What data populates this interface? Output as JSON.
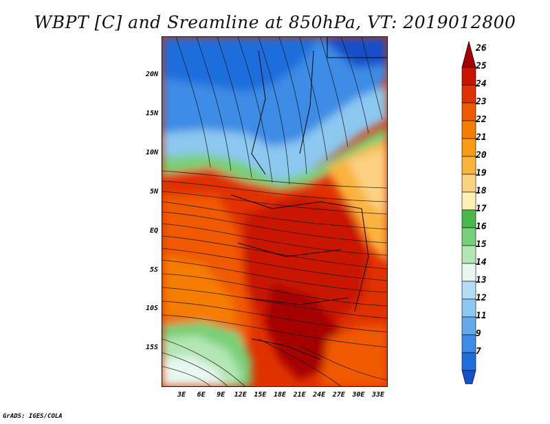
{
  "title": "WBPT [C] and Sreamline at 850hPa, VT: 2019012800",
  "credit": "GrADS: IGES/COLA",
  "y_ticks": [
    "20N",
    "15N",
    "10N",
    "5N",
    "EQ",
    "5S",
    "10S",
    "15S"
  ],
  "x_ticks": [
    "3E",
    "6E",
    "9E",
    "12E",
    "15E",
    "18E",
    "21E",
    "24E",
    "27E",
    "30E",
    "33E"
  ],
  "colorbar": {
    "labels": [
      "26",
      "25",
      "24",
      "23",
      "22",
      "21",
      "20",
      "19",
      "18",
      "17",
      "16",
      "15",
      "14",
      "13",
      "12",
      "11",
      "9",
      "7"
    ],
    "colors": [
      "#a50000",
      "#c81400",
      "#e03200",
      "#f05a00",
      "#f57d00",
      "#fa9b14",
      "#fab43c",
      "#fcd282",
      "#fcf0b4",
      "#4ab94a",
      "#78d078",
      "#b4e6b4",
      "#e6f8f0",
      "#b4dcf5",
      "#8cc8f0",
      "#64aaeb",
      "#3c8ce6",
      "#1e6edc",
      "#1450c8"
    ]
  }
}
